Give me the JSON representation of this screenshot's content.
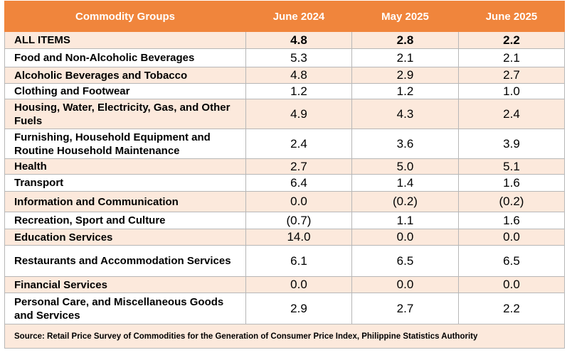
{
  "header": {
    "group_label": "Commodity Groups",
    "columns": [
      "June 2024",
      "May 2025",
      "June 2025"
    ]
  },
  "rows": [
    {
      "name": "ALL ITEMS",
      "values": [
        "4.8",
        "2.8",
        "2.2"
      ]
    },
    {
      "name": "Food and Non-Alcoholic Beverages",
      "values": [
        "5.3",
        "2.1",
        "2.1"
      ]
    },
    {
      "name": "Alcoholic Beverages and Tobacco",
      "values": [
        "4.8",
        "2.9",
        "2.7"
      ]
    },
    {
      "name": "Clothing and Footwear",
      "values": [
        "1.2",
        "1.2",
        "1.0"
      ]
    },
    {
      "name": "Housing, Water, Electricity, Gas, and Other Fuels",
      "values": [
        "4.9",
        "4.3",
        "2.4"
      ]
    },
    {
      "name": "Furnishing, Household Equipment and Routine Household Maintenance",
      "values": [
        "2.4",
        "3.6",
        "3.9"
      ]
    },
    {
      "name": "Health",
      "values": [
        "2.7",
        "5.0",
        "5.1"
      ]
    },
    {
      "name": "Transport",
      "values": [
        "6.4",
        "1.4",
        "1.6"
      ]
    },
    {
      "name": "Information and Communication",
      "values": [
        "0.0",
        "(0.2)",
        "(0.2)"
      ]
    },
    {
      "name": "Recreation, Sport and Culture",
      "values": [
        "(0.7)",
        "1.1",
        "1.6"
      ]
    },
    {
      "name": "Education Services",
      "values": [
        "14.0",
        "0.0",
        "0.0"
      ]
    },
    {
      "name": "Restaurants and Accommodation Services",
      "values": [
        "6.1",
        "6.5",
        "6.5"
      ]
    },
    {
      "name": "Financial Services",
      "values": [
        "0.0",
        "0.0",
        "0.0"
      ]
    },
    {
      "name": "Personal Care, and Miscellaneous Goods and Services",
      "values": [
        "2.9",
        "2.7",
        "2.2"
      ]
    }
  ],
  "source": "Source: Retail Price Survey of Commodities for the Generation of Consumer Price Index, Philippine Statistics Authority",
  "colors": {
    "header_bg": "#f0853c",
    "shaded_row_bg": "#fce9dc",
    "border": "#b7b7b7"
  }
}
